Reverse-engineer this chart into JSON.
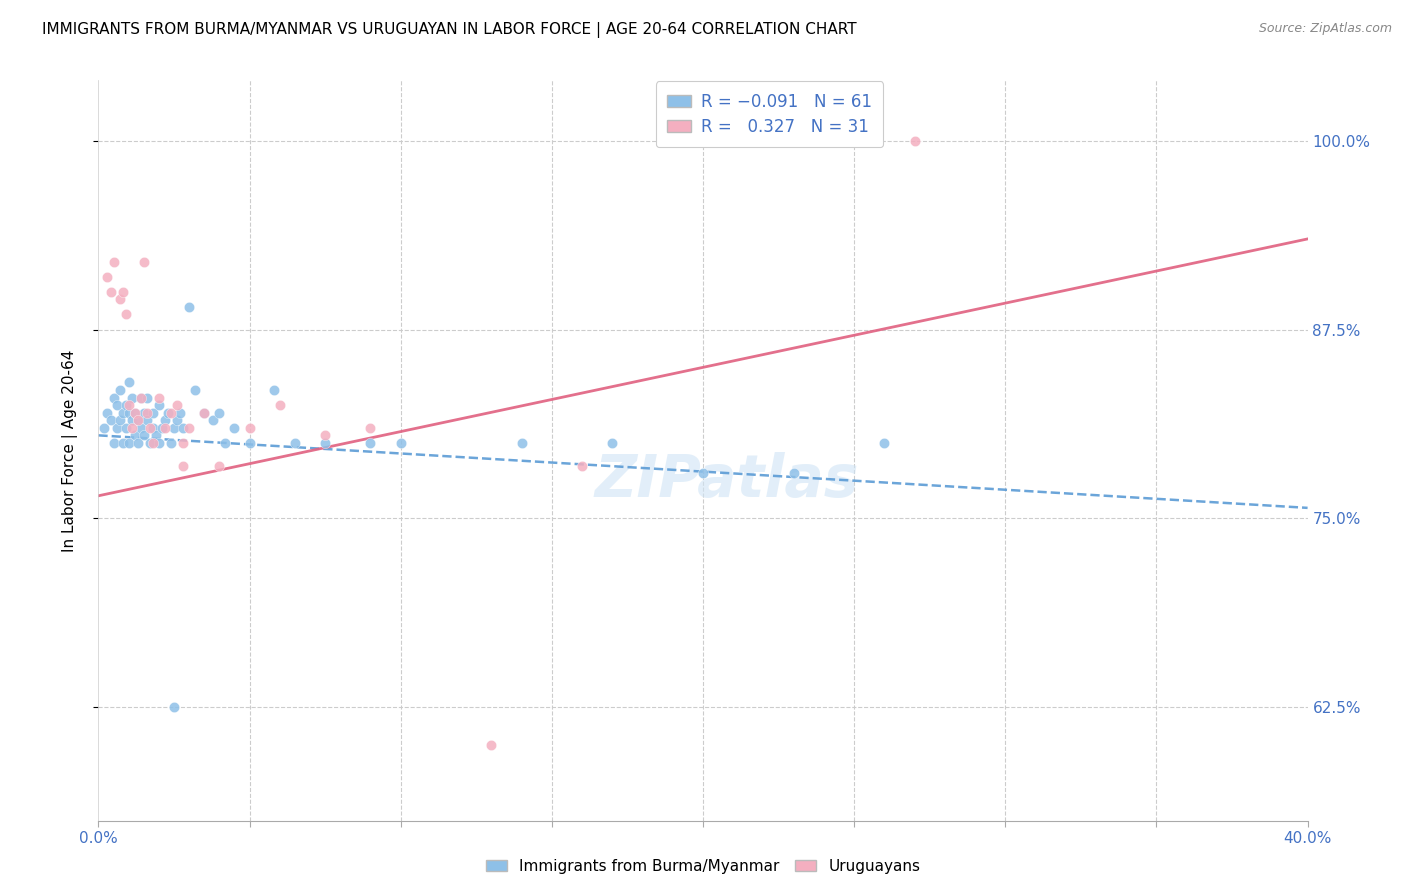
{
  "title": "IMMIGRANTS FROM BURMA/MYANMAR VS URUGUAYAN IN LABOR FORCE | AGE 20-64 CORRELATION CHART",
  "source": "Source: ZipAtlas.com",
  "ylabel": "In Labor Force | Age 20-64",
  "xlim": [
    0.0,
    0.4
  ],
  "ylim": [
    0.55,
    1.04
  ],
  "ytick_positions": [
    0.625,
    0.75,
    0.875,
    1.0
  ],
  "ytick_labels": [
    "62.5%",
    "75.0%",
    "87.5%",
    "100.0%"
  ],
  "blue_color": "#8ec0e8",
  "blue_line_color": "#5b9bd5",
  "pink_color": "#f4afc0",
  "pink_line_color": "#e06080",
  "blue_R": -0.091,
  "blue_N": 61,
  "pink_R": 0.327,
  "pink_N": 31,
  "watermark": "ZIPatlas",
  "blue_line_x0": 0.0,
  "blue_line_y0": 0.805,
  "blue_line_x1": 0.4,
  "blue_line_y1": 0.757,
  "pink_line_x0": 0.0,
  "pink_line_y0": 0.765,
  "pink_line_x1": 0.4,
  "pink_line_y1": 0.935,
  "blue_x": [
    0.002,
    0.003,
    0.004,
    0.005,
    0.005,
    0.006,
    0.006,
    0.007,
    0.007,
    0.008,
    0.008,
    0.009,
    0.009,
    0.01,
    0.01,
    0.01,
    0.011,
    0.011,
    0.012,
    0.012,
    0.013,
    0.013,
    0.014,
    0.014,
    0.015,
    0.015,
    0.016,
    0.016,
    0.017,
    0.018,
    0.018,
    0.019,
    0.02,
    0.02,
    0.021,
    0.022,
    0.023,
    0.024,
    0.025,
    0.026,
    0.027,
    0.028,
    0.03,
    0.032,
    0.035,
    0.038,
    0.04,
    0.042,
    0.045,
    0.05,
    0.058,
    0.065,
    0.075,
    0.09,
    0.1,
    0.14,
    0.17,
    0.2,
    0.23,
    0.26,
    0.025
  ],
  "blue_y": [
    0.81,
    0.82,
    0.815,
    0.83,
    0.8,
    0.825,
    0.81,
    0.835,
    0.815,
    0.82,
    0.8,
    0.825,
    0.81,
    0.84,
    0.82,
    0.8,
    0.815,
    0.83,
    0.82,
    0.805,
    0.815,
    0.8,
    0.83,
    0.81,
    0.82,
    0.805,
    0.815,
    0.83,
    0.8,
    0.82,
    0.81,
    0.805,
    0.825,
    0.8,
    0.81,
    0.815,
    0.82,
    0.8,
    0.81,
    0.815,
    0.82,
    0.81,
    0.89,
    0.835,
    0.82,
    0.815,
    0.82,
    0.8,
    0.81,
    0.8,
    0.835,
    0.8,
    0.8,
    0.8,
    0.8,
    0.8,
    0.8,
    0.78,
    0.78,
    0.8,
    0.625
  ],
  "pink_x": [
    0.003,
    0.004,
    0.005,
    0.007,
    0.008,
    0.009,
    0.01,
    0.011,
    0.012,
    0.013,
    0.014,
    0.015,
    0.016,
    0.017,
    0.018,
    0.02,
    0.022,
    0.024,
    0.026,
    0.028,
    0.03,
    0.035,
    0.04,
    0.05,
    0.06,
    0.075,
    0.09,
    0.13,
    0.16,
    0.27,
    0.028
  ],
  "pink_y": [
    0.91,
    0.9,
    0.92,
    0.895,
    0.9,
    0.885,
    0.825,
    0.81,
    0.82,
    0.815,
    0.83,
    0.92,
    0.82,
    0.81,
    0.8,
    0.83,
    0.81,
    0.82,
    0.825,
    0.8,
    0.81,
    0.82,
    0.785,
    0.81,
    0.825,
    0.805,
    0.81,
    0.6,
    0.785,
    1.0,
    0.785
  ]
}
